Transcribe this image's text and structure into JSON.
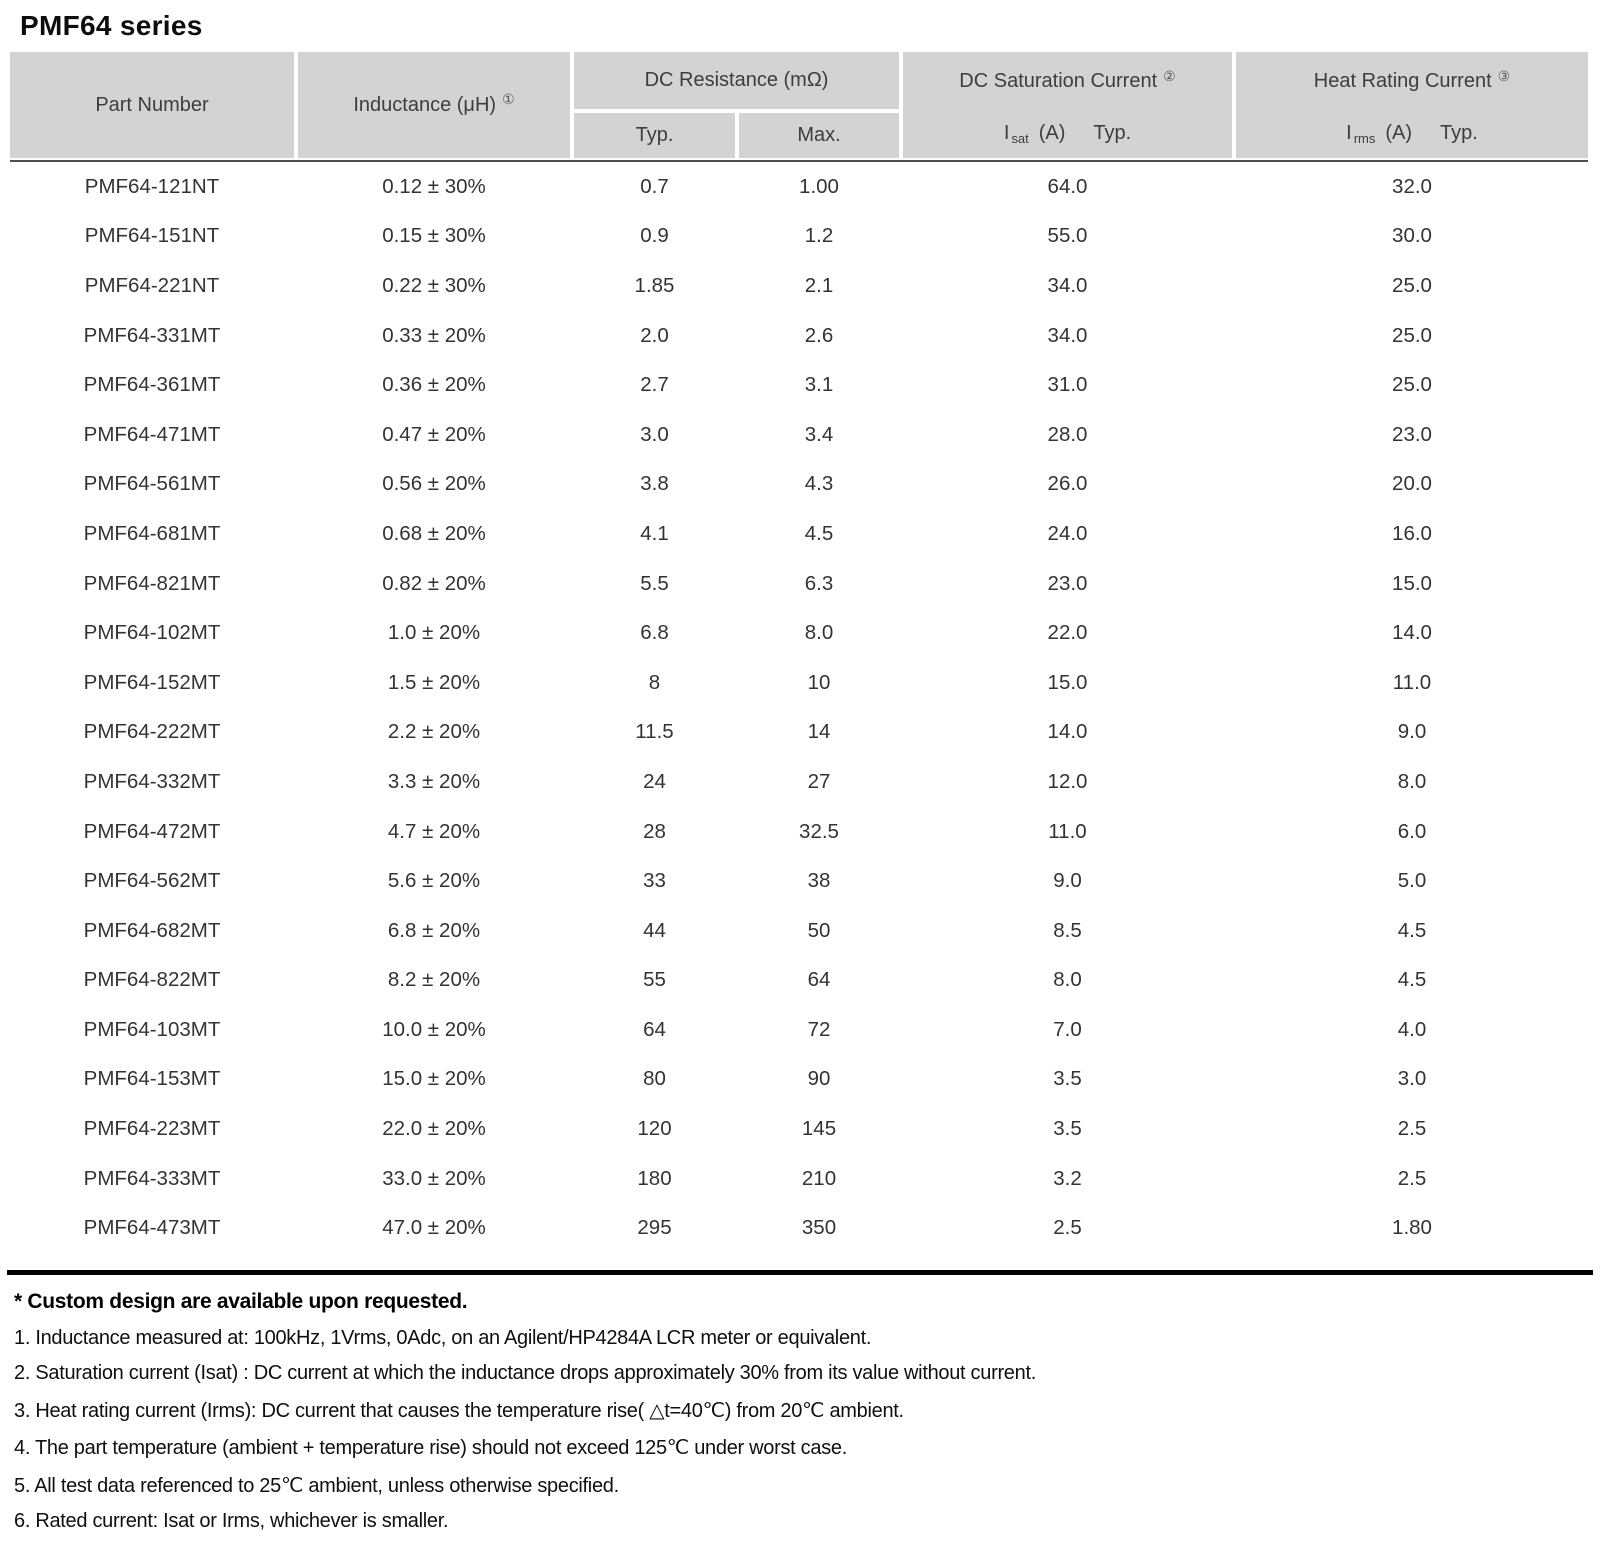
{
  "title": "PMF64 series",
  "colors": {
    "header_bg": "#d3d3d3",
    "rule_thin": "#4d4d4d",
    "rule_thick": "#000000"
  },
  "table": {
    "headers": {
      "part_number": "Part Number",
      "inductance_label": "Inductance (μH)",
      "inductance_ref": "①",
      "dc_resistance_label": "DC Resistance (mΩ)",
      "typ": "Typ.",
      "max": "Max.",
      "saturation_label": "DC Saturation Current",
      "saturation_ref": "②",
      "saturation_symbol": "I",
      "saturation_symbol_sub": "sat",
      "saturation_unit": "(A)",
      "saturation_qualifier": "Typ.",
      "heat_label": "Heat Rating Current",
      "heat_ref": "③",
      "heat_symbol": "I",
      "heat_symbol_sub": "rms",
      "heat_unit": "(A)",
      "heat_qualifier": "Typ."
    },
    "rows": [
      {
        "part_number": "PMF64-121NT",
        "inductance": "0.12 ± 30%",
        "dcr_typ": "0.7",
        "dcr_max": "1.00",
        "isat_typ": "64.0",
        "irms_typ": "32.0"
      },
      {
        "part_number": "PMF64-151NT",
        "inductance": "0.15 ± 30%",
        "dcr_typ": "0.9",
        "dcr_max": "1.2",
        "isat_typ": "55.0",
        "irms_typ": "30.0"
      },
      {
        "part_number": "PMF64-221NT",
        "inductance": "0.22 ± 30%",
        "dcr_typ": "1.85",
        "dcr_max": "2.1",
        "isat_typ": "34.0",
        "irms_typ": "25.0"
      },
      {
        "part_number": "PMF64-331MT",
        "inductance": "0.33 ± 20%",
        "dcr_typ": "2.0",
        "dcr_max": "2.6",
        "isat_typ": "34.0",
        "irms_typ": "25.0"
      },
      {
        "part_number": "PMF64-361MT",
        "inductance": "0.36 ± 20%",
        "dcr_typ": "2.7",
        "dcr_max": "3.1",
        "isat_typ": "31.0",
        "irms_typ": "25.0"
      },
      {
        "part_number": "PMF64-471MT",
        "inductance": "0.47 ± 20%",
        "dcr_typ": "3.0",
        "dcr_max": "3.4",
        "isat_typ": "28.0",
        "irms_typ": "23.0"
      },
      {
        "part_number": "PMF64-561MT",
        "inductance": "0.56 ± 20%",
        "dcr_typ": "3.8",
        "dcr_max": "4.3",
        "isat_typ": "26.0",
        "irms_typ": "20.0"
      },
      {
        "part_number": "PMF64-681MT",
        "inductance": "0.68 ± 20%",
        "dcr_typ": "4.1",
        "dcr_max": "4.5",
        "isat_typ": "24.0",
        "irms_typ": "16.0"
      },
      {
        "part_number": "PMF64-821MT",
        "inductance": "0.82 ± 20%",
        "dcr_typ": "5.5",
        "dcr_max": "6.3",
        "isat_typ": "23.0",
        "irms_typ": "15.0"
      },
      {
        "part_number": "PMF64-102MT",
        "inductance": "1.0 ± 20%",
        "dcr_typ": "6.8",
        "dcr_max": "8.0",
        "isat_typ": "22.0",
        "irms_typ": "14.0"
      },
      {
        "part_number": "PMF64-152MT",
        "inductance": "1.5 ± 20%",
        "dcr_typ": "8",
        "dcr_max": "10",
        "isat_typ": "15.0",
        "irms_typ": "11.0"
      },
      {
        "part_number": "PMF64-222MT",
        "inductance": "2.2 ± 20%",
        "dcr_typ": "11.5",
        "dcr_max": "14",
        "isat_typ": "14.0",
        "irms_typ": "9.0"
      },
      {
        "part_number": "PMF64-332MT",
        "inductance": "3.3 ± 20%",
        "dcr_typ": "24",
        "dcr_max": "27",
        "isat_typ": "12.0",
        "irms_typ": "8.0"
      },
      {
        "part_number": "PMF64-472MT",
        "inductance": "4.7 ± 20%",
        "dcr_typ": "28",
        "dcr_max": "32.5",
        "isat_typ": "11.0",
        "irms_typ": "6.0"
      },
      {
        "part_number": "PMF64-562MT",
        "inductance": "5.6 ± 20%",
        "dcr_typ": "33",
        "dcr_max": "38",
        "isat_typ": "9.0",
        "irms_typ": "5.0"
      },
      {
        "part_number": "PMF64-682MT",
        "inductance": "6.8 ± 20%",
        "dcr_typ": "44",
        "dcr_max": "50",
        "isat_typ": "8.5",
        "irms_typ": "4.5"
      },
      {
        "part_number": "PMF64-822MT",
        "inductance": "8.2 ± 20%",
        "dcr_typ": "55",
        "dcr_max": "64",
        "isat_typ": "8.0",
        "irms_typ": "4.5"
      },
      {
        "part_number": "PMF64-103MT",
        "inductance": "10.0 ± 20%",
        "dcr_typ": "64",
        "dcr_max": "72",
        "isat_typ": "7.0",
        "irms_typ": "4.0"
      },
      {
        "part_number": "PMF64-153MT",
        "inductance": "15.0 ± 20%",
        "dcr_typ": "80",
        "dcr_max": "90",
        "isat_typ": "3.5",
        "irms_typ": "3.0"
      },
      {
        "part_number": "PMF64-223MT",
        "inductance": "22.0 ± 20%",
        "dcr_typ": "120",
        "dcr_max": "145",
        "isat_typ": "3.5",
        "irms_typ": "2.5"
      },
      {
        "part_number": "PMF64-333MT",
        "inductance": "33.0 ± 20%",
        "dcr_typ": "180",
        "dcr_max": "210",
        "isat_typ": "3.2",
        "irms_typ": "2.5"
      },
      {
        "part_number": "PMF64-473MT",
        "inductance": "47.0 ± 20%",
        "dcr_typ": "295",
        "dcr_max": "350",
        "isat_typ": "2.5",
        "irms_typ": "1.80"
      }
    ]
  },
  "footnotes": {
    "custom_note": "* Custom design are available upon requested.",
    "items": [
      "1. Inductance measured at: 100kHz, 1Vrms, 0Adc, on an Agilent/HP4284A LCR meter or equivalent.",
      "2. Saturation current (Isat) : DC current at which the inductance drops approximately 30% from its value without current.",
      "3. Heat rating current (Irms): DC current that causes the temperature rise( △t=40℃) from 20℃ ambient.",
      "4. The part temperature (ambient + temperature rise) should not exceed 125℃ under worst case.",
      "5. All test data referenced to 25℃ ambient, unless otherwise specified.",
      "6. Rated current: Isat or Irms, whichever is smaller."
    ]
  }
}
